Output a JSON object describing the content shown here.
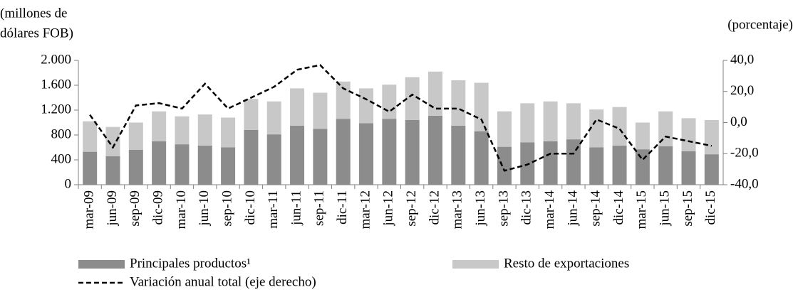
{
  "chart_data": {
    "type": "bar",
    "stacked": true,
    "ylabel": [
      "(millones  de",
      "dólares FOB)"
    ],
    "y2label": "(porcentaje)",
    "categories": [
      "mar-09",
      "jun-09",
      "sep-09",
      "dic-09",
      "mar-10",
      "jun-10",
      "sep-10",
      "dic-10",
      "mar-11",
      "jun-11",
      "sep-11",
      "dic-11",
      "mar-12",
      "jun-12",
      "sep-12",
      "dic-12",
      "mar-13",
      "jun-13",
      "sep-13",
      "dic-13",
      "mar-14",
      "jun-14",
      "sep-14",
      "dic-14",
      "mar-15",
      "jun-15",
      "sep-15",
      "dic-15"
    ],
    "series": [
      {
        "name": "Principales productos¹",
        "color": "#8c8c8c",
        "type": "bar",
        "values": [
          530,
          460,
          560,
          700,
          650,
          630,
          600,
          880,
          810,
          950,
          900,
          1060,
          990,
          1060,
          1040,
          1110,
          950,
          860,
          610,
          680,
          700,
          730,
          600,
          630,
          570,
          620,
          540,
          490
        ]
      },
      {
        "name": "Resto de exportaciones",
        "color": "#c8c8c8",
        "type": "bar",
        "values": [
          490,
          470,
          440,
          480,
          450,
          500,
          480,
          500,
          530,
          600,
          580,
          600,
          560,
          550,
          690,
          710,
          730,
          780,
          570,
          630,
          640,
          580,
          610,
          620,
          430,
          560,
          530,
          550
        ]
      },
      {
        "name": "Variación anual total (eje derecho)",
        "color": "#000000",
        "type": "line",
        "dashed": true,
        "axis": "y2",
        "values": [
          5,
          -16,
          11,
          12.5,
          9,
          25,
          9,
          16,
          23,
          34,
          37,
          22,
          15,
          7,
          18,
          9,
          9,
          2,
          -31,
          -27,
          -20,
          -20,
          2,
          -4,
          -24,
          -9,
          -12,
          -15
        ]
      }
    ],
    "ylim": [
      0,
      2000
    ],
    "yticks": [
      0,
      {
        "value": 400,
        "label": "400"
      },
      {
        "value": 800,
        "label": "800"
      },
      {
        "value": 1200,
        "label": "1.200"
      },
      {
        "value": 1600,
        "label": "1.600"
      },
      {
        "value": 2000,
        "label": "2.000"
      }
    ],
    "y2lim": [
      -40,
      40
    ],
    "y2ticks": [
      {
        "value": -40,
        "label": "-40,0"
      },
      {
        "value": -20,
        "label": "-20,0"
      },
      {
        "value": 0,
        "label": "0,0"
      },
      {
        "value": 20,
        "label": "20,0"
      },
      {
        "value": 40,
        "label": "40,0"
      }
    ],
    "grid": false
  }
}
